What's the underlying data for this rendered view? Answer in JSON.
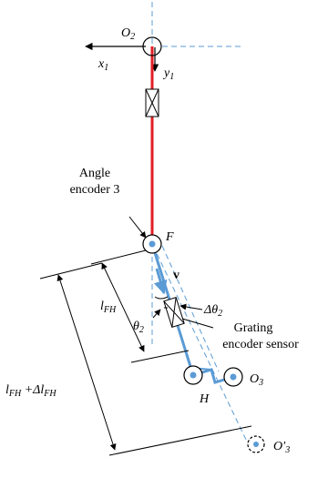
{
  "labels": {
    "O2_main": "O",
    "O2_sub": "2",
    "x1_main": "x",
    "x1_sub": "1",
    "y1_main": "y",
    "y1_sub": "1",
    "angle_encoder_line1": "Angle",
    "angle_encoder_line2": "encoder 3",
    "F": "F",
    "v": "v",
    "delta_theta2_main": "Δθ",
    "delta_theta2_sub": "2",
    "theta2_main": "θ",
    "theta2_sub": "2",
    "lFH_main": "l",
    "lFH_sub": "FH",
    "lFH_delta_main1": "l",
    "lFH_delta_sub1": "FH",
    "lFH_delta_mid": " +Δl",
    "lFH_delta_sub2": "FH",
    "grating_line1": "Grating",
    "grating_line2": "encoder sensor",
    "H": "H",
    "O3_main": "O",
    "O3_sub": "3",
    "O3p_main": "O′",
    "O3p_sub": "3"
  },
  "colors": {
    "red_link": "#e31e24",
    "blue_link": "#5b9bd5",
    "dashed": "#5b9bd5",
    "black": "#000000"
  }
}
